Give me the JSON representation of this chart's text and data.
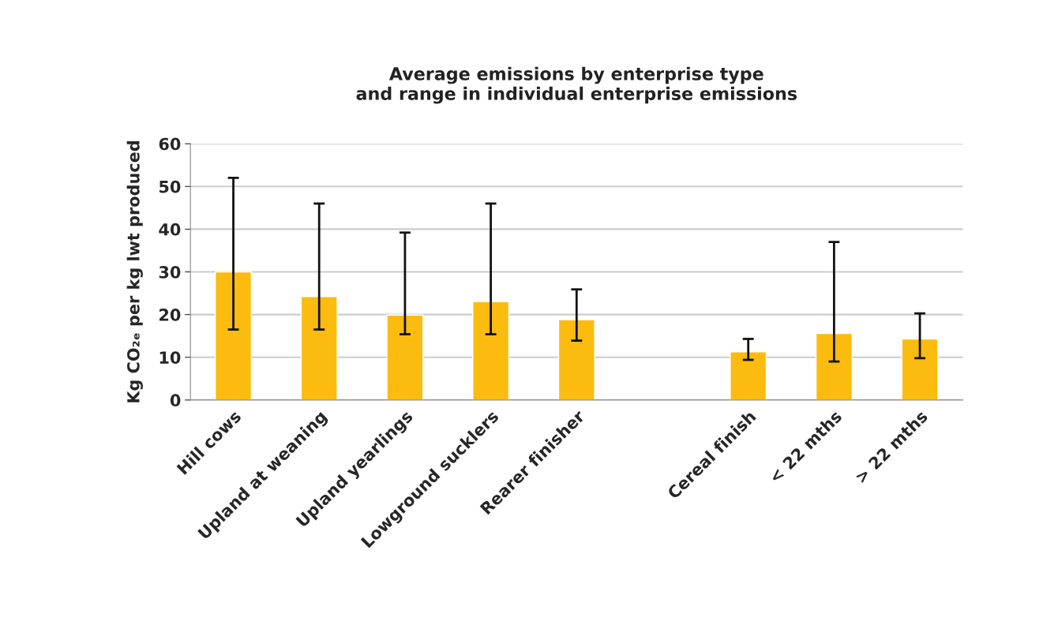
{
  "chart_data": {
    "type": "bar",
    "title": "Average emissions by enterprise type\nand range in individual enterprise emissions",
    "ylabel": "Kg CO₂ₑ per kg lwt produced",
    "categories": [
      "Hill cows",
      "Upland at weaning",
      "Upland yearlings",
      "Lowground sucklers",
      "Rearer finisher",
      null,
      "Cereal finish",
      "< 22 mths",
      "> 22 mths"
    ],
    "values": [
      30,
      24.2,
      19.9,
      23,
      18.8,
      null,
      11.3,
      15.6,
      14.3
    ],
    "errors": [
      [
        16.5,
        52
      ],
      [
        16.5,
        46
      ],
      [
        15.4,
        39.2
      ],
      [
        15.4,
        46
      ],
      [
        13.9,
        25.9
      ],
      null,
      [
        9.4,
        14.3
      ],
      [
        9,
        37
      ],
      [
        9.8,
        20.3
      ]
    ],
    "color": "#fbbc0f",
    "ylim": [
      0,
      60
    ],
    "yticks": [
      0,
      10,
      20,
      30,
      40,
      50,
      60
    ],
    "grid": "y",
    "legend": false
  }
}
